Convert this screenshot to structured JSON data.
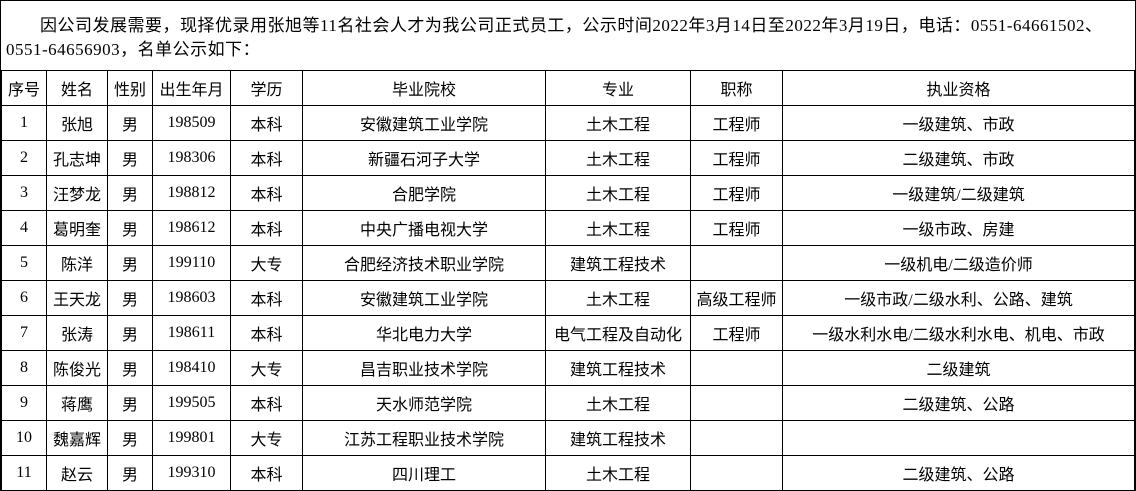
{
  "intro": {
    "text": "因公司发展需要，现择优录用张旭等11名社会人才为我公司正式员工，公示时间2022年3月14日至2022年3月19日，电话：0551-64661502、0551-64656903，名单公示如下："
  },
  "table": {
    "headers": [
      "序号",
      "姓名",
      "性别",
      "出生年月",
      "学历",
      "毕业院校",
      "专业",
      "职称",
      "执业资格"
    ],
    "rows": [
      [
        "1",
        "张旭",
        "男",
        "198509",
        "本科",
        "安徽建筑工业学院",
        "土木工程",
        "工程师",
        "一级建筑、市政"
      ],
      [
        "2",
        "孔志坤",
        "男",
        "198306",
        "本科",
        "新疆石河子大学",
        "土木工程",
        "工程师",
        "二级建筑、市政"
      ],
      [
        "3",
        "汪梦龙",
        "男",
        "198812",
        "本科",
        "合肥学院",
        "土木工程",
        "工程师",
        "一级建筑/二级建筑"
      ],
      [
        "4",
        "葛明奎",
        "男",
        "198612",
        "本科",
        "中央广播电视大学",
        "土木工程",
        "工程师",
        "一级市政、房建"
      ],
      [
        "5",
        "陈洋",
        "男",
        "199110",
        "大专",
        "合肥经济技术职业学院",
        "建筑工程技术",
        "",
        "一级机电/二级造价师"
      ],
      [
        "6",
        "王天龙",
        "男",
        "198603",
        "本科",
        "安徽建筑工业学院",
        "土木工程",
        "高级工程师",
        "一级市政/二级水利、公路、建筑"
      ],
      [
        "7",
        "张涛",
        "男",
        "198611",
        "本科",
        "华北电力大学",
        "电气工程及自动化",
        "工程师",
        "一级水利水电/二级水利水电、机电、市政"
      ],
      [
        "8",
        "陈俊光",
        "男",
        "198410",
        "大专",
        "昌吉职业技术学院",
        "建筑工程技术",
        "",
        "二级建筑"
      ],
      [
        "9",
        "蒋鹰",
        "男",
        "199505",
        "本科",
        "天水师范学院",
        "土木工程",
        "",
        "二级建筑、公路"
      ],
      [
        "10",
        "魏嘉辉",
        "男",
        "199801",
        "大专",
        "江苏工程职业技术学院",
        "建筑工程技术",
        "",
        ""
      ],
      [
        "11",
        "赵云",
        "男",
        "199310",
        "本科",
        "四川理工",
        "土木工程",
        "",
        "二级建筑、公路"
      ]
    ]
  },
  "colors": {
    "text": "#000000",
    "background": "#ffffff",
    "border": "#000000"
  }
}
